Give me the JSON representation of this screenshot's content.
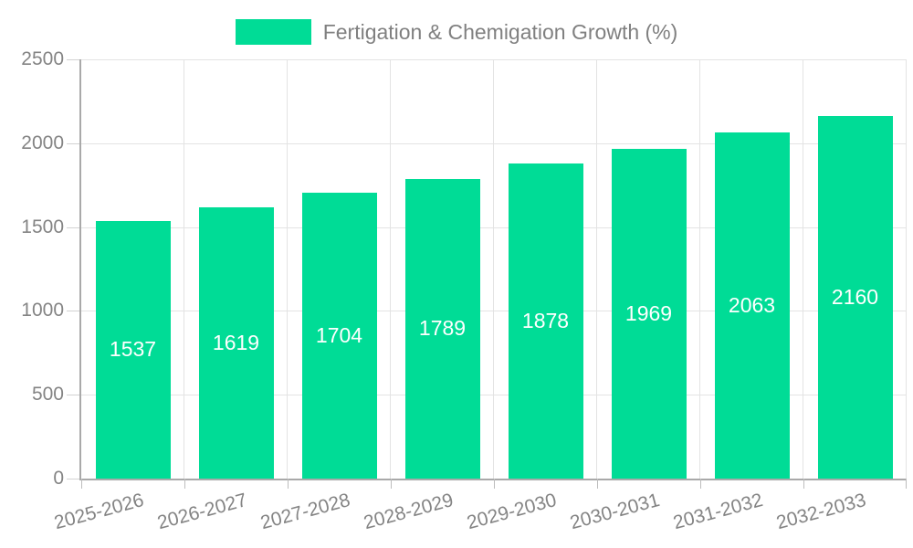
{
  "legend": {
    "label": "Fertigation & Chemigation Growth (%)",
    "swatch_color": "#00DC96",
    "text_color": "#808080"
  },
  "chart_data": {
    "type": "bar",
    "title": "Fertigation & Chemigation Growth (%)",
    "series_name": "Fertigation & Chemigation Growth (%)",
    "categories": [
      "2025-2026",
      "2026-2027",
      "2027-2028",
      "2028-2029",
      "2029-2030",
      "2030-2031",
      "2031-2032",
      "2032-2033"
    ],
    "values": [
      1537,
      1619,
      1704,
      1789,
      1878,
      1969,
      2063,
      2160
    ],
    "value_labels": [
      "1537",
      "1619",
      "1704",
      "1789",
      "1878",
      "1969",
      "2063",
      "2160"
    ],
    "xlabel": "",
    "ylabel": "",
    "ylim": [
      0,
      2500
    ],
    "yticks": [
      0,
      500,
      1000,
      1500,
      2000,
      2500
    ],
    "grid": true,
    "legend_position": "top-center",
    "bar_color": "#00DC96",
    "bar_label_color": "#ffffff",
    "axis_color": "#a9a9a9",
    "gridline_color": "#e3e3e3",
    "tick_label_color": "#848484",
    "x_tick_rotation_deg": -15
  }
}
